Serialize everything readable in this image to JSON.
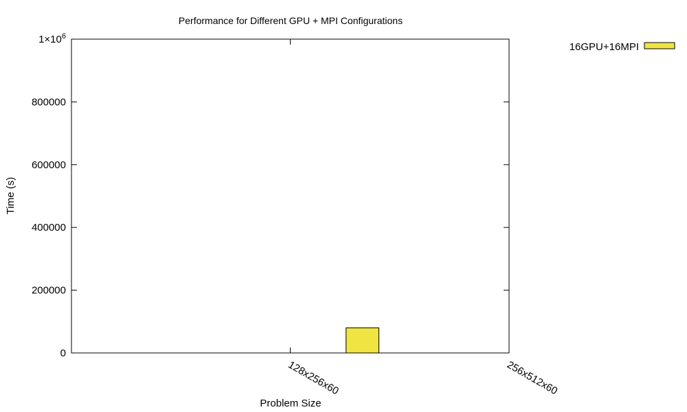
{
  "chart_data": {
    "type": "bar",
    "title": "Performance for Different GPU + MPI Configurations",
    "xlabel": "Problem Size",
    "ylabel": "Time (s)",
    "categories": [
      "128x256x60",
      "256x512x60"
    ],
    "series": [
      {
        "name": "16GPU+16MPI",
        "color": "#f0e442",
        "values": [
          80000,
          null
        ]
      }
    ],
    "ylim": [
      0,
      1000000
    ],
    "yticks": [
      {
        "value": 0,
        "label": "0"
      },
      {
        "value": 200000,
        "label": "200000"
      },
      {
        "value": 400000,
        "label": "400000"
      },
      {
        "value": 600000,
        "label": "600000"
      },
      {
        "value": 800000,
        "label": "800000"
      },
      {
        "value": 1000000,
        "label": "1×10",
        "sup": "6"
      }
    ],
    "legend": "top-right, outside plot",
    "grid": false
  }
}
